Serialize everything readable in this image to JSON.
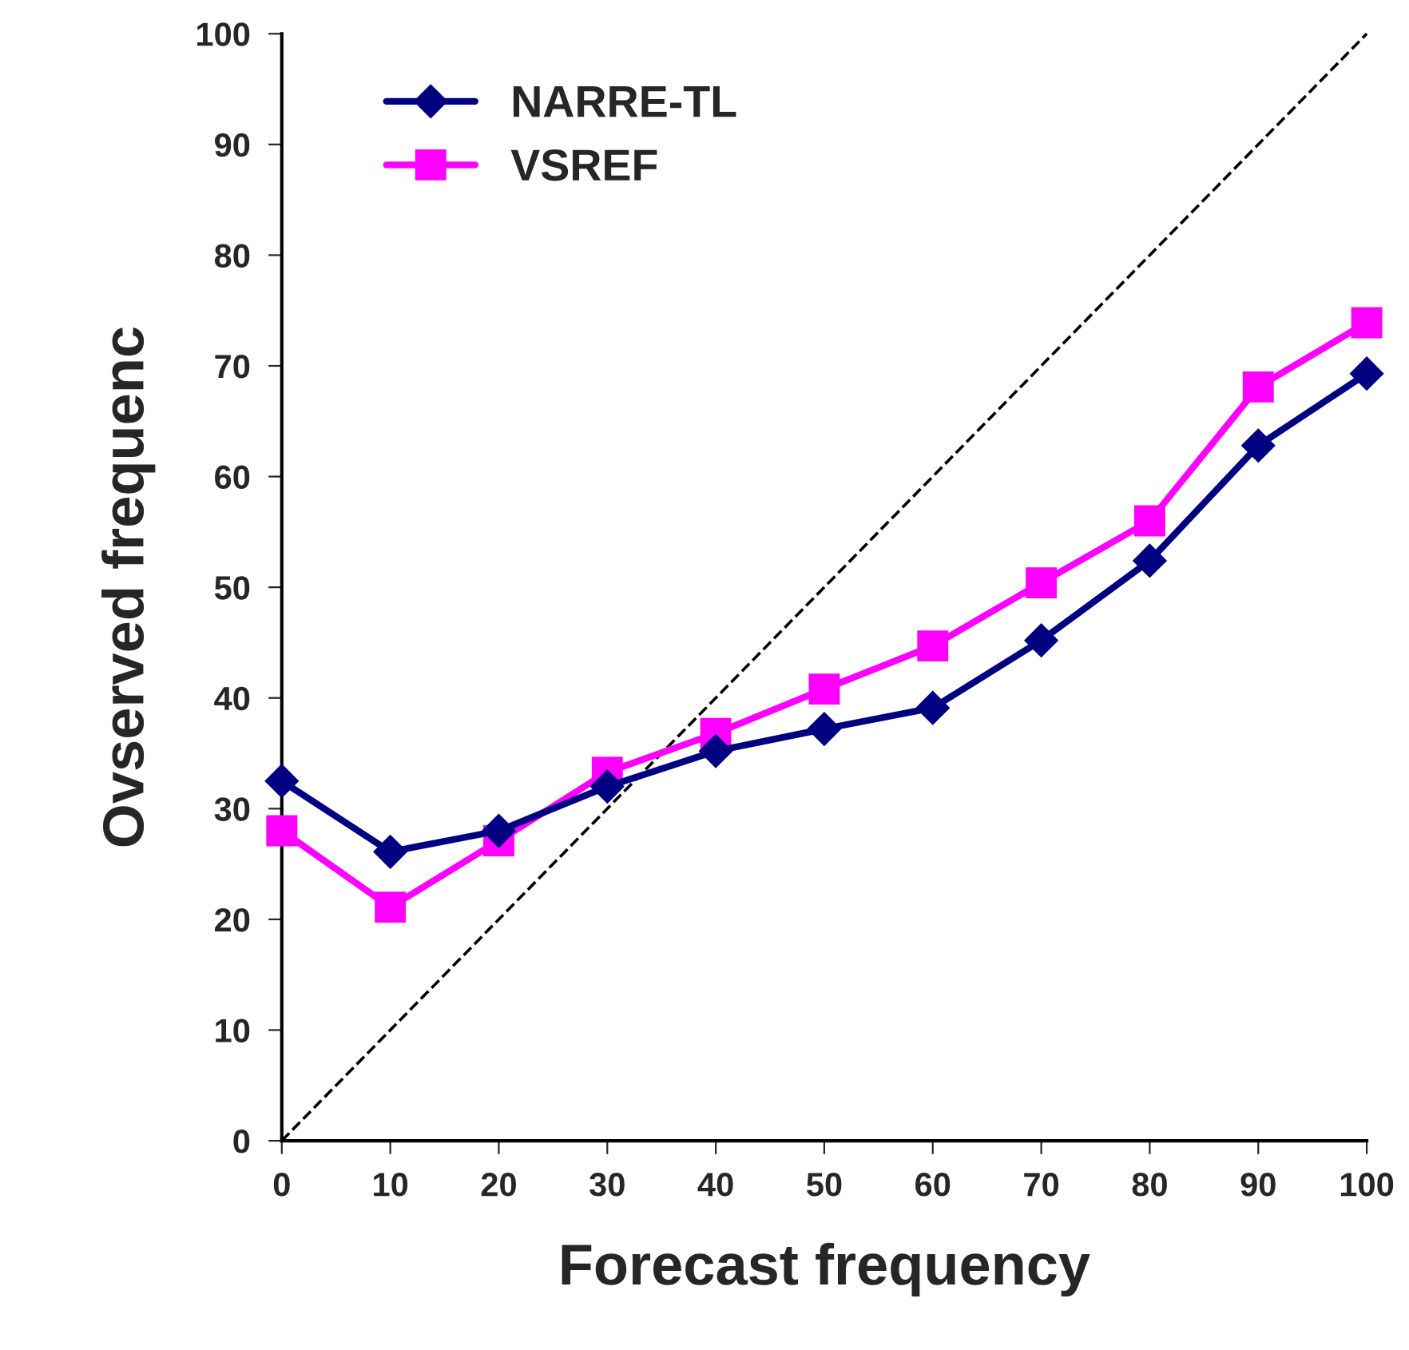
{
  "chart_data": {
    "type": "line",
    "xlabel": "Forecast frequency",
    "ylabel": "Ovserved frequenc",
    "x": [
      0,
      10,
      20,
      30,
      40,
      50,
      60,
      70,
      80,
      90,
      100
    ],
    "series": [
      {
        "name": "NARRE-TL",
        "color": "#000080",
        "marker": "diamond",
        "values": [
          32.5,
          26.1,
          28.0,
          32.0,
          35.2,
          37.2,
          39.1,
          45.2,
          52.4,
          62.8,
          69.3
        ]
      },
      {
        "name": "VSREF",
        "color": "#ff00ff",
        "marker": "square",
        "values": [
          28.0,
          21.1,
          27.1,
          33.3,
          36.8,
          40.8,
          44.7,
          50.4,
          56.0,
          68.1,
          73.9
        ]
      },
      {
        "color": "#000000",
        "marker": "none",
        "line_style": "dashed",
        "x": [
          0,
          100
        ],
        "values": [
          0,
          100
        ]
      }
    ],
    "xlim": [
      0,
      100
    ],
    "ylim": [
      0,
      100
    ],
    "xticks": [
      0,
      10,
      20,
      30,
      40,
      50,
      60,
      70,
      80,
      90,
      100
    ],
    "yticks": [
      0,
      10,
      20,
      30,
      40,
      50,
      60,
      70,
      80,
      90,
      100
    ],
    "grid": false,
    "legend": "top left"
  }
}
